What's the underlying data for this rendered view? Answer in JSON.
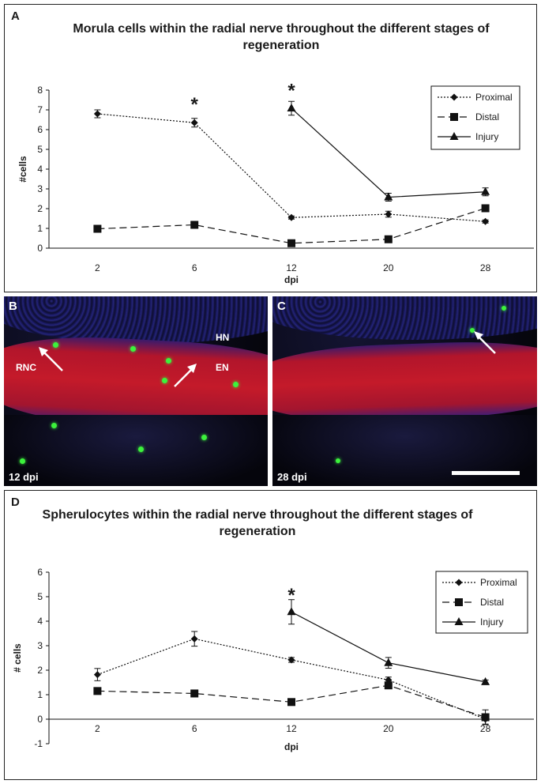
{
  "panelA": {
    "letter": "A",
    "title": "Morula cells within the radial nerve throughout the different stages of regeneration"
  },
  "panelB": {
    "letter": "B",
    "labels": {
      "rnc": "RNC",
      "hn": "HN",
      "en": "EN"
    },
    "caption": "12 dpi"
  },
  "panelC": {
    "letter": "C",
    "caption": "28 dpi"
  },
  "panelD": {
    "letter": "D",
    "title": "Spherulocytes within the radial nerve throughout the different stages of regeneration"
  },
  "chart_data": [
    {
      "type": "line",
      "title": "Morula cells within the radial nerve throughout the different stages of regeneration",
      "xlabel": "dpi",
      "ylabel": "#cells",
      "categories": [
        "2",
        "6",
        "12",
        "20",
        "28"
      ],
      "ylim": [
        0,
        8
      ],
      "yticks": [
        0,
        1,
        2,
        3,
        4,
        5,
        6,
        7,
        8
      ],
      "legend_position": "top-right",
      "series": [
        {
          "name": "Proximal",
          "marker": "diamond",
          "dash": "dotted",
          "values": [
            6.8,
            6.35,
            1.55,
            1.72,
            1.35
          ],
          "errors": [
            0.2,
            0.22,
            0.08,
            0.15,
            0.08
          ]
        },
        {
          "name": "Distal",
          "marker": "square",
          "dash": "dashed",
          "values": [
            0.98,
            1.18,
            0.25,
            0.45,
            2.02
          ],
          "errors": [
            0,
            0,
            0,
            0,
            0
          ]
        },
        {
          "name": "Injury",
          "marker": "triangle",
          "dash": "solid",
          "values": [
            null,
            null,
            7.08,
            2.58,
            2.85
          ],
          "errors": [
            0,
            0,
            0.35,
            0.2,
            0.2
          ]
        }
      ],
      "annotations": [
        {
          "x": "6",
          "y": 7.45,
          "text": "*"
        },
        {
          "x": "12",
          "y": 8.15,
          "text": "*"
        }
      ]
    },
    {
      "type": "line",
      "title": "Spherulocytes within the radial nerve throughout the different stages of regeneration",
      "xlabel": "dpi",
      "ylabel": "# cells",
      "categories": [
        "2",
        "6",
        "12",
        "20",
        "28"
      ],
      "ylim": [
        -1,
        6
      ],
      "yticks": [
        -1,
        0,
        1,
        2,
        3,
        4,
        5,
        6
      ],
      "legend_position": "right",
      "series": [
        {
          "name": "Proximal",
          "marker": "diamond",
          "dash": "dotted",
          "values": [
            1.82,
            3.28,
            2.42,
            1.6,
            0.0
          ],
          "errors": [
            0.25,
            0.3,
            0.1,
            0.12,
            0.2
          ]
        },
        {
          "name": "Distal",
          "marker": "square",
          "dash": "dashed",
          "values": [
            1.15,
            1.05,
            0.7,
            1.38,
            0.08
          ],
          "errors": [
            0,
            0,
            0,
            0.12,
            0.3
          ]
        },
        {
          "name": "Injury",
          "marker": "triangle",
          "dash": "solid",
          "values": [
            null,
            null,
            4.38,
            2.3,
            1.52
          ],
          "errors": [
            0,
            0,
            0.5,
            0.22,
            0.08
          ]
        }
      ],
      "annotations": [
        {
          "x": "12",
          "y": 5.2,
          "text": "*"
        }
      ]
    }
  ]
}
